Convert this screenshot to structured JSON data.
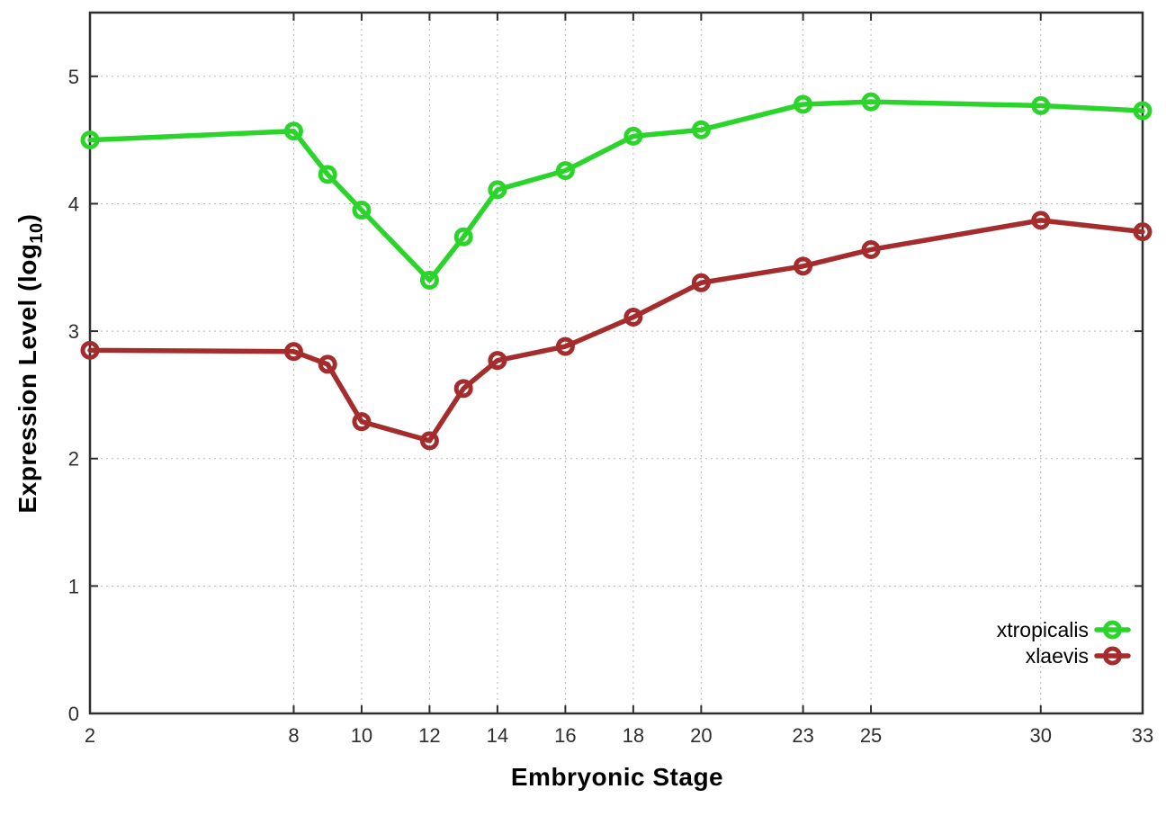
{
  "chart_data": {
    "type": "line",
    "title": "",
    "xlabel": "Embryonic Stage",
    "ylabel": "Expression Level (log10)",
    "ylabel_parts": {
      "prefix": "Expression Level (log",
      "sub": "10",
      "suffix": ")"
    },
    "x": [
      2,
      8,
      9,
      10,
      12,
      13,
      14,
      16,
      18,
      20,
      23,
      25,
      30,
      33
    ],
    "series": [
      {
        "name": "xtropicalis",
        "color": "#2bd42b",
        "values": [
          4.5,
          4.57,
          4.23,
          3.95,
          3.4,
          3.74,
          4.11,
          4.26,
          4.53,
          4.58,
          4.78,
          4.8,
          4.77,
          4.73
        ]
      },
      {
        "name": "xlaevis",
        "color": "#a52c2c",
        "values": [
          2.85,
          2.84,
          2.74,
          2.29,
          2.14,
          2.55,
          2.77,
          2.88,
          3.11,
          3.38,
          3.51,
          3.64,
          3.87,
          3.78
        ]
      }
    ],
    "xticks": [
      2,
      8,
      10,
      12,
      14,
      16,
      18,
      20,
      23,
      25,
      30,
      33
    ],
    "yticks": [
      0,
      1,
      2,
      3,
      4,
      5
    ],
    "xlim": [
      2,
      33
    ],
    "ylim": [
      0,
      5.5
    ],
    "grid": true,
    "legend_position": "bottom-right",
    "legend": [
      "xtropicalis",
      "xlaevis"
    ]
  },
  "colors": {
    "background": "#ffffff",
    "border": "#2e2e2e",
    "grid": "#b8b8b8",
    "tick_label": "#2e2e2e",
    "axis_label": "#000000",
    "legend_text": "#000000"
  }
}
